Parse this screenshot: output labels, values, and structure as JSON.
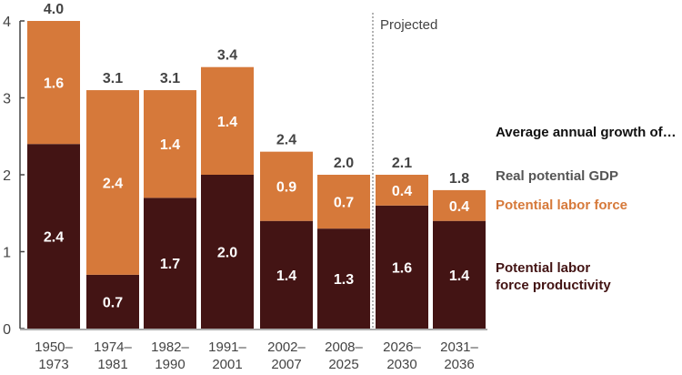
{
  "chart_data": {
    "type": "bar",
    "stacked": true,
    "categories": [
      [
        "1950–",
        "1973"
      ],
      [
        "1974–",
        "1981"
      ],
      [
        "1982–",
        "1990"
      ],
      [
        "1991–",
        "2001"
      ],
      [
        "2002–",
        "2007"
      ],
      [
        "2008–",
        "2025"
      ],
      [
        "2026–",
        "2030"
      ],
      [
        "2031–",
        "2036"
      ]
    ],
    "legend_title": "Average annual growth of…",
    "total_label": "Real potential GDP",
    "totals": [
      4.0,
      3.1,
      3.1,
      3.4,
      2.4,
      2.0,
      2.1,
      1.8
    ],
    "series": [
      {
        "name": "Potential labor force productivity",
        "color": "#431414",
        "values": [
          2.4,
          0.7,
          1.7,
          2.0,
          1.4,
          1.3,
          1.6,
          1.4
        ],
        "legend_lines": [
          "Potential labor",
          "force productivity"
        ]
      },
      {
        "name": "Potential labor force",
        "color": "#d6793a",
        "values": [
          1.6,
          2.4,
          1.4,
          1.4,
          0.9,
          0.7,
          0.4,
          0.4
        ]
      }
    ],
    "ylim": [
      0,
      4
    ],
    "yticks": [
      0,
      1,
      2,
      3,
      4
    ],
    "annotation": "Projected",
    "projected_start_index": 6,
    "grid": false,
    "legend_position": "right"
  },
  "colors": {
    "total_text": "#555555",
    "axis": "#444444"
  }
}
